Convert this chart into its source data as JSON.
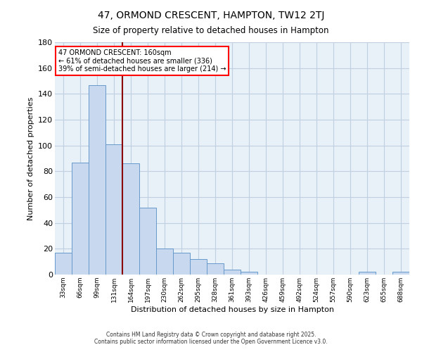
{
  "title": "47, ORMOND CRESCENT, HAMPTON, TW12 2TJ",
  "subtitle": "Size of property relative to detached houses in Hampton",
  "xlabel": "Distribution of detached houses by size in Hampton",
  "ylabel": "Number of detached properties",
  "bar_color": "#c8d9ef",
  "bar_edge_color": "#6699cc",
  "background_color": "#e8f0f8",
  "grid_color": "#c0d0e0",
  "bin_labels": [
    "33sqm",
    "66sqm",
    "99sqm",
    "131sqm",
    "164sqm",
    "197sqm",
    "230sqm",
    "262sqm",
    "295sqm",
    "328sqm",
    "361sqm",
    "393sqm",
    "426sqm",
    "459sqm",
    "492sqm",
    "524sqm",
    "557sqm",
    "590sqm",
    "623sqm",
    "655sqm",
    "688sqm"
  ],
  "bar_heights": [
    17,
    87,
    147,
    101,
    86,
    52,
    20,
    17,
    12,
    9,
    4,
    2,
    0,
    0,
    0,
    0,
    0,
    0,
    2,
    0,
    2
  ],
  "red_line_index": 4,
  "annotation_title": "47 ORMOND CRESCENT: 160sqm",
  "annotation_line1": "← 61% of detached houses are smaller (336)",
  "annotation_line2": "39% of semi-detached houses are larger (214) →",
  "ylim": [
    0,
    180
  ],
  "yticks": [
    0,
    20,
    40,
    60,
    80,
    100,
    120,
    140,
    160,
    180
  ],
  "footer1": "Contains HM Land Registry data © Crown copyright and database right 2025.",
  "footer2": "Contains public sector information licensed under the Open Government Licence v3.0."
}
